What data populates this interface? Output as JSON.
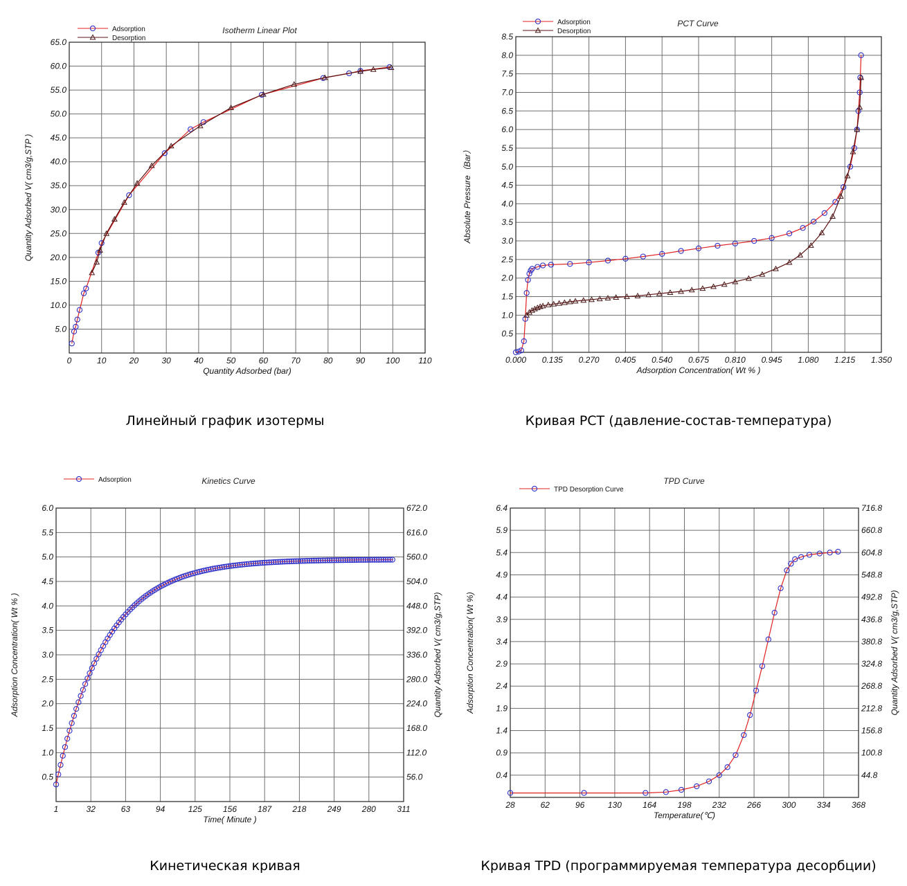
{
  "captions": [
    "Линейный график изотермы",
    "Кривая PCT (давление-состав-температура)",
    "Кинетическая кривая",
    "Кривая TPD (программируемая температура десорбции)"
  ],
  "colors": {
    "adsorption_line": "#e02020",
    "desorption_line": "#5a1010",
    "marker": "#3030c8",
    "marker_desorption": "#4a1a1a",
    "grid": "#6e6e6e"
  },
  "chart_data": [
    {
      "type": "line",
      "title": "Isotherm Linear Plot",
      "xlabel": "Quantity Adsorbed (bar)",
      "ylabel": "Quantity Adsorbed V( cm3/g,STP )",
      "xlim": [
        0,
        110
      ],
      "ylim": [
        0,
        65
      ],
      "xticks": [
        "0",
        "10",
        "20",
        "30",
        "40",
        "50",
        "60",
        "70",
        "80",
        "90",
        "100",
        "110"
      ],
      "yticks": [
        "5.0",
        "10.0",
        "15.0",
        "20.0",
        "25.0",
        "30.0",
        "35.0",
        "40.0",
        "45.0",
        "50.0",
        "55.0",
        "60.0",
        "65.0"
      ],
      "grid": true,
      "legend": "top-left",
      "series": [
        {
          "name": "Adsorption",
          "marker": "circle",
          "x": [
            0.8,
            1.5,
            2,
            2.5,
            3.2,
            4.5,
            5.2,
            9,
            10,
            18.5,
            29.5,
            37.5,
            41.5,
            59.5,
            78.5,
            86.5,
            90,
            99
          ],
          "y": [
            2,
            4.5,
            5.5,
            7,
            9,
            12.5,
            13.5,
            21,
            23,
            33,
            41.8,
            46.8,
            48.3,
            54,
            57.5,
            58.5,
            59,
            59.8
          ]
        },
        {
          "name": "Desorption",
          "marker": "triangle",
          "x": [
            7,
            8.5,
            9.5,
            11.5,
            14,
            17,
            21,
            25.5,
            31.5,
            40.5,
            50,
            60,
            69.5,
            79,
            90,
            94,
            99.5
          ],
          "y": [
            16.8,
            19,
            21.5,
            25,
            28,
            31.5,
            35.5,
            39.2,
            43.3,
            47.5,
            51.3,
            54.1,
            56.2,
            57.6,
            58.9,
            59.3,
            59.7
          ]
        }
      ]
    },
    {
      "type": "line",
      "title": "PCT Curve",
      "xlabel": "Adsorption Concentration( Wt % )",
      "ylabel": "Absolute Pressure（Bar）",
      "xlim": [
        0,
        1.35
      ],
      "ylim": [
        0,
        8.5
      ],
      "xticks": [
        "0.000",
        "0.135",
        "0.270",
        "0.405",
        "0.540",
        "0.675",
        "0.810",
        "0.945",
        "1.080",
        "1.215",
        "1.350"
      ],
      "yticks": [
        "0.5",
        "1.0",
        "1.5",
        "2.0",
        "2.5",
        "3.0",
        "3.5",
        "4.0",
        "4.5",
        "5.0",
        "5.5",
        "6.0",
        "6.5",
        "7.0",
        "7.5",
        "8.0",
        "8.5"
      ],
      "grid": true,
      "legend": "top-left",
      "series": [
        {
          "name": "Adsorption",
          "marker": "circle",
          "x": [
            0,
            0.01,
            0.02,
            0.03,
            0.035,
            0.04,
            0.045,
            0.05,
            0.055,
            0.06,
            0.08,
            0.1,
            0.13,
            0.2,
            0.27,
            0.34,
            0.405,
            0.47,
            0.54,
            0.61,
            0.675,
            0.745,
            0.81,
            0.88,
            0.945,
            1.01,
            1.06,
            1.1,
            1.14,
            1.18,
            1.21,
            1.235,
            1.25,
            1.26,
            1.265,
            1.27,
            1.272,
            1.275
          ],
          "y": [
            0,
            0.02,
            0.05,
            0.3,
            0.9,
            1.6,
            1.95,
            2.12,
            2.2,
            2.25,
            2.3,
            2.34,
            2.36,
            2.38,
            2.42,
            2.47,
            2.52,
            2.58,
            2.65,
            2.73,
            2.8,
            2.87,
            2.93,
            3.0,
            3.08,
            3.2,
            3.35,
            3.52,
            3.75,
            4.05,
            4.45,
            5.0,
            5.5,
            6.0,
            6.5,
            7.0,
            7.4,
            8.0
          ]
        },
        {
          "name": "Desorption",
          "marker": "triangle",
          "x": [
            0.04,
            0.05,
            0.06,
            0.07,
            0.08,
            0.09,
            0.1,
            0.12,
            0.14,
            0.16,
            0.18,
            0.2,
            0.22,
            0.25,
            0.28,
            0.31,
            0.34,
            0.37,
            0.41,
            0.45,
            0.49,
            0.53,
            0.57,
            0.61,
            0.65,
            0.69,
            0.73,
            0.77,
            0.81,
            0.86,
            0.91,
            0.96,
            1.01,
            1.05,
            1.09,
            1.13,
            1.17,
            1.2,
            1.225,
            1.245,
            1.26,
            1.27,
            1.275
          ],
          "y": [
            1.0,
            1.08,
            1.13,
            1.17,
            1.2,
            1.23,
            1.25,
            1.28,
            1.3,
            1.32,
            1.34,
            1.36,
            1.38,
            1.4,
            1.42,
            1.44,
            1.46,
            1.48,
            1.5,
            1.52,
            1.55,
            1.58,
            1.61,
            1.64,
            1.68,
            1.72,
            1.77,
            1.83,
            1.9,
            1.99,
            2.1,
            2.25,
            2.42,
            2.62,
            2.88,
            3.22,
            3.66,
            4.2,
            4.75,
            5.4,
            6.0,
            6.6,
            7.4
          ]
        }
      ]
    },
    {
      "type": "line",
      "title": "Kinetics Curve",
      "xlabel": "Time( Minute )",
      "ylabel": "Adsorption Concentration( Wt % )",
      "ylabel_right": "Quantity Adsorbed V( cm3/g,STP)",
      "xlim": [
        1,
        311
      ],
      "ylim": [
        0,
        6.0
      ],
      "xticks": [
        "1",
        "32",
        "63",
        "94",
        "125",
        "156",
        "187",
        "218",
        "249",
        "280",
        "311"
      ],
      "yticks": [
        "0.5",
        "1.0",
        "1.5",
        "2.0",
        "2.5",
        "3.0",
        "3.5",
        "4.0",
        "4.5",
        "5.0",
        "5.5",
        "6.0"
      ],
      "yticks_right": [
        "56.0",
        "112.0",
        "168.0",
        "224.0",
        "280.0",
        "336.0",
        "392.0",
        "448.0",
        "504.0",
        "560.0",
        "616.0",
        "672.0"
      ],
      "grid": true,
      "legend": "top-left",
      "series": [
        {
          "name": "Adsorption",
          "marker": "circle",
          "sampling": "every 2 min",
          "x_start": 1,
          "x_end": 301,
          "x_step": 2,
          "model": {
            "y0": 0.35,
            "ymax": 4.95,
            "tau": 44
          }
        }
      ]
    },
    {
      "type": "line",
      "title": "TPD Curve",
      "xlabel": "Temperature(℃)",
      "ylabel": "Adsorption Concentration( Wt %)",
      "ylabel_right": "Quantity Adsorbed V( cm3/g,STP)",
      "xlim": [
        28,
        368
      ],
      "ylim": [
        -0.1,
        6.4
      ],
      "xticks": [
        "28",
        "62",
        "96",
        "130",
        "164",
        "198",
        "232",
        "266",
        "300",
        "334",
        "368"
      ],
      "yticks": [
        "0.4",
        "0.9",
        "1.4",
        "1.9",
        "2.4",
        "2.9",
        "3.4",
        "3.9",
        "4.4",
        "4.9",
        "5.4",
        "5.9",
        "6.4"
      ],
      "yticks_right": [
        "44.8",
        "100.8",
        "156.8",
        "212.8",
        "268.8",
        "324.8",
        "380.8",
        "436.8",
        "492.8",
        "548.8",
        "604.8",
        "660.8",
        "716.8"
      ],
      "grid": true,
      "legend": "top-left",
      "series": [
        {
          "name": "TPD Desorption Curve",
          "marker": "circle",
          "x": [
            28,
            100,
            160,
            180,
            195,
            210,
            222,
            232,
            240,
            248,
            256,
            262,
            268,
            274,
            280,
            286,
            292,
            298,
            302,
            306,
            312,
            320,
            330,
            340,
            348
          ],
          "y": [
            0.0,
            0.0,
            0.0,
            0.02,
            0.07,
            0.15,
            0.26,
            0.4,
            0.58,
            0.85,
            1.3,
            1.75,
            2.3,
            2.85,
            3.45,
            4.05,
            4.6,
            5.0,
            5.15,
            5.25,
            5.3,
            5.35,
            5.38,
            5.4,
            5.42
          ]
        }
      ]
    }
  ]
}
